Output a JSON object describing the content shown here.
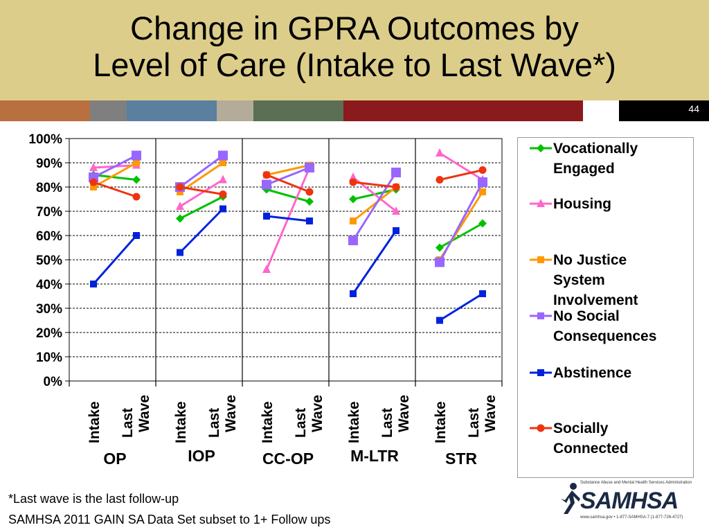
{
  "slide": {
    "title_line1": "Change in GPRA Outcomes by",
    "title_line2": "Level of Care (Intake to Last Wave*)",
    "slide_number": "44",
    "footnote1": "*Last wave is the last follow-up",
    "footnote2": "SAMHSA 2011 GAIN SA Data Set subset to 1+ Follow ups",
    "logo_text": "SAMHSA",
    "logo_top": "Substance Abuse and Mental Health Services Administration",
    "logo_bottom": "www.samhsa.gov • 1-877-SAMHSA-7 (1-877-726-4727)"
  },
  "colors": {
    "title_band": "#dccd8a",
    "bar_segments": [
      "#b87040",
      "#7f7f80",
      "#5a7f9f",
      "#b4ab98",
      "#5a6f53",
      "#8b1a1c",
      "#ffffff",
      "#000000"
    ]
  },
  "chart_data": {
    "type": "line",
    "ylim": [
      0,
      100
    ],
    "ytick_labels": [
      "0%",
      "10%",
      "20%",
      "30%",
      "40%",
      "50%",
      "60%",
      "70%",
      "80%",
      "90%",
      "100%"
    ],
    "x_tick_labels": [
      "Intake",
      "Last Wave"
    ],
    "groups": [
      "OP",
      "IOP",
      "CC-OP",
      "M-LTR",
      "STR"
    ],
    "legend_placement": "right",
    "grid": true,
    "series": [
      {
        "name": "Vocationally Engaged",
        "color": "#00c000",
        "marker": "diamond",
        "values": [
          [
            85,
            83
          ],
          [
            67,
            76
          ],
          [
            79,
            74
          ],
          [
            75,
            79
          ],
          [
            55,
            65
          ]
        ]
      },
      {
        "name": "Housing",
        "color": "#ff66cc",
        "marker": "triangle",
        "values": [
          [
            88,
            89
          ],
          [
            72,
            83
          ],
          [
            46,
            88
          ],
          [
            84,
            70
          ],
          [
            94,
            83
          ]
        ]
      },
      {
        "name": "No Justice System Involvement",
        "color": "#ff9900",
        "marker": "square",
        "values": [
          [
            80,
            90
          ],
          [
            78,
            90
          ],
          [
            85,
            89
          ],
          [
            66,
            80
          ],
          [
            50,
            78
          ]
        ]
      },
      {
        "name": "No Social Consequences",
        "color": "#9966ff",
        "marker": "bigsquare",
        "values": [
          [
            84,
            93
          ],
          [
            80,
            93
          ],
          [
            81,
            88
          ],
          [
            58,
            86
          ],
          [
            49,
            82
          ]
        ]
      },
      {
        "name": "Abstinence",
        "color": "#0022dd",
        "marker": "square",
        "values": [
          [
            40,
            60
          ],
          [
            53,
            71
          ],
          [
            68,
            66
          ],
          [
            36,
            62
          ],
          [
            25,
            36
          ]
        ]
      },
      {
        "name": "Socially Connected",
        "color": "#ee3311",
        "marker": "circle",
        "values": [
          [
            82,
            76
          ],
          [
            80,
            77
          ],
          [
            85,
            78
          ],
          [
            82,
            80
          ],
          [
            83,
            87
          ]
        ]
      }
    ]
  }
}
